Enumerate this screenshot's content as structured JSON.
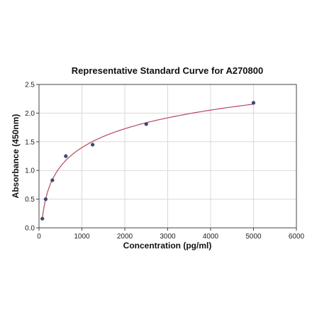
{
  "chart_data": {
    "type": "scatter",
    "title": "Representative Standard Curve for A270800",
    "xlabel": "Concentration (pg/ml)",
    "ylabel": "Absorbance (450nm)",
    "xlim": [
      0,
      6000
    ],
    "ylim": [
      0,
      2.5
    ],
    "xticks": [
      "0",
      "1000",
      "2000",
      "3000",
      "4000",
      "5000",
      "6000"
    ],
    "yticks": [
      "0.0",
      "0.5",
      "1.0",
      "1.5",
      "2.0",
      "2.5"
    ],
    "grid": true,
    "series": [
      {
        "points": [
          {
            "x": 78,
            "y": 0.16
          },
          {
            "x": 156,
            "y": 0.5
          },
          {
            "x": 312,
            "y": 0.83
          },
          {
            "x": 625,
            "y": 1.25
          },
          {
            "x": 1250,
            "y": 1.45
          },
          {
            "x": 2500,
            "y": 1.81
          },
          {
            "x": 5000,
            "y": 2.18
          }
        ],
        "fit": "curve",
        "point_color": "#3b4a6b",
        "fit_color": "#b5475f"
      }
    ]
  }
}
